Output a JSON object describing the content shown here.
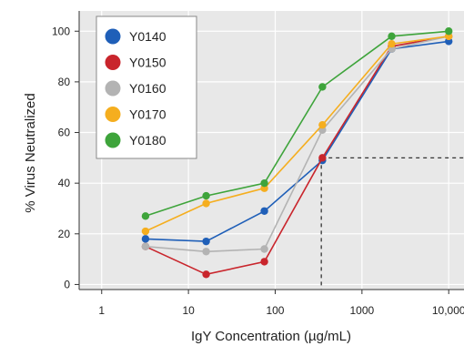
{
  "chart_data": {
    "type": "line",
    "title": "",
    "xlabel": "IgY Concentration (µg/mL)",
    "ylabel": "% Virus Neutralized",
    "xscale": "log",
    "xlim": [
      0.55,
      15000
    ],
    "ylim": [
      -2,
      108
    ],
    "x_ticks": [
      1,
      10,
      100,
      1000,
      10000
    ],
    "x_tick_labels": [
      "1",
      "10",
      "100",
      "1000",
      "10,000"
    ],
    "y_ticks": [
      0,
      20,
      40,
      60,
      80,
      100
    ],
    "y_tick_labels": [
      "0",
      "20",
      "40",
      "60",
      "80",
      "100"
    ],
    "grid": true,
    "legend_position": "top-left",
    "x": [
      3.2,
      16,
      75,
      350,
      2200,
      10000
    ],
    "series": [
      {
        "name": "Y0140",
        "color": "#1f5fb8",
        "values": [
          18,
          17,
          29,
          49,
          93,
          96
        ]
      },
      {
        "name": "Y0150",
        "color": "#c9252c",
        "values": [
          15,
          4,
          9,
          50,
          94,
          98
        ]
      },
      {
        "name": "Y0160",
        "color": "#b3b3b3",
        "values": [
          15,
          13,
          14,
          61,
          93,
          98
        ]
      },
      {
        "name": "Y0170",
        "color": "#f5ae1f",
        "values": [
          21,
          32,
          38,
          63,
          95,
          98
        ]
      },
      {
        "name": "Y0180",
        "color": "#3ea43b",
        "values": [
          27,
          35,
          40,
          78,
          98,
          100
        ]
      }
    ],
    "reference_lines": {
      "x": 340,
      "y": 50,
      "style": "dashed"
    }
  }
}
